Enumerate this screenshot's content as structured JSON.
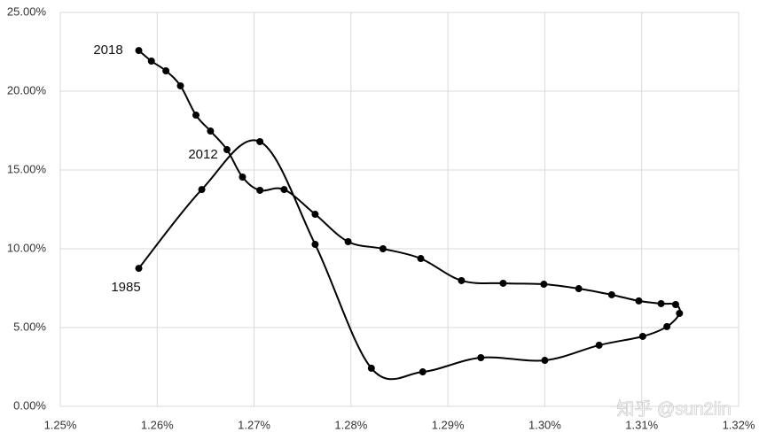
{
  "chart_data": {
    "type": "line",
    "x": [
      1.2581,
      1.2646,
      1.2706,
      1.2763,
      1.2821,
      1.2874,
      1.2934,
      1.3,
      1.3056,
      1.3101,
      1.3126,
      1.3139,
      1.3135,
      1.312,
      1.3097,
      1.3069,
      1.3035,
      1.2999,
      1.2957,
      1.2914,
      1.2872,
      1.2833,
      1.2797,
      1.2763,
      1.2731,
      1.2706,
      1.2688,
      1.2672,
      1.2655,
      1.264,
      1.2624,
      1.2609,
      1.2594,
      1.2581
    ],
    "values": [
      8.76,
      13.76,
      16.8,
      10.28,
      2.42,
      2.19,
      3.09,
      2.92,
      3.88,
      4.44,
      5.06,
      5.9,
      6.46,
      6.52,
      6.69,
      7.08,
      7.47,
      7.75,
      7.81,
      7.98,
      9.38,
      10.0,
      10.45,
      12.19,
      13.76,
      13.71,
      14.55,
      16.29,
      17.47,
      18.48,
      20.34,
      21.29,
      21.91,
      22.58
    ],
    "color": "#000000",
    "xlim": [
      1.25,
      1.32
    ],
    "xticks": [
      {
        "value": 1.25,
        "label": "1.25%"
      },
      {
        "value": 1.26,
        "label": "1.26%"
      },
      {
        "value": 1.27,
        "label": "1.27%"
      },
      {
        "value": 1.28,
        "label": "1.28%"
      },
      {
        "value": 1.29,
        "label": "1.29%"
      },
      {
        "value": 1.3,
        "label": "1.30%"
      },
      {
        "value": 1.31,
        "label": "1.31%"
      },
      {
        "value": 1.32,
        "label": "1.32%"
      }
    ],
    "ylim": [
      0,
      25
    ],
    "yticks": [
      {
        "value": 0,
        "label": "0.00%"
      },
      {
        "value": 5,
        "label": "5.00%"
      },
      {
        "value": 10,
        "label": "10.00%"
      },
      {
        "value": 15,
        "label": "15.00%"
      },
      {
        "value": 20,
        "label": "20.00%"
      },
      {
        "value": 25,
        "label": "25.00%"
      }
    ],
    "grid": true,
    "annotations": [
      "1985",
      "2012",
      "2018"
    ],
    "watermark": "知乎 @sun2lin"
  }
}
